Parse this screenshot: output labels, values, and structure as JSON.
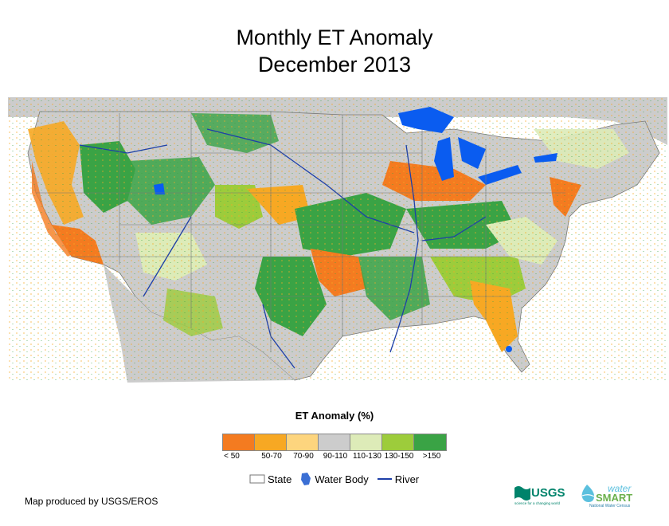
{
  "title": {
    "line1": "Monthly ET Anomaly",
    "line2": "December 2013"
  },
  "legend": {
    "title": "ET Anomaly (%)",
    "classes": [
      {
        "label": "< 50",
        "color": "#f47b20"
      },
      {
        "label": "50-70",
        "color": "#f7a823"
      },
      {
        "label": "70-90",
        "color": "#fdd57e"
      },
      {
        "label": "90-110",
        "color": "#cccccc"
      },
      {
        "label": "110-130",
        "color": "#ddebb8"
      },
      {
        "label": "130-150",
        "color": "#9dcc3b"
      },
      {
        "label": ">150",
        "color": "#3aa345"
      }
    ],
    "layers": {
      "state": "State",
      "water_body": "Water Body",
      "river": "River"
    }
  },
  "colors": {
    "water": "#0a5cf0",
    "river": "#1d3fa8",
    "background_land": "#cccccc"
  },
  "credit": "Map produced by USGS/EROS",
  "logos": {
    "usgs": "USGS",
    "usgs_tagline": "science for a changing world",
    "watersmart_top": "water",
    "watersmart_bottom": "SMART",
    "watersmart_tagline": "National Water Census"
  }
}
